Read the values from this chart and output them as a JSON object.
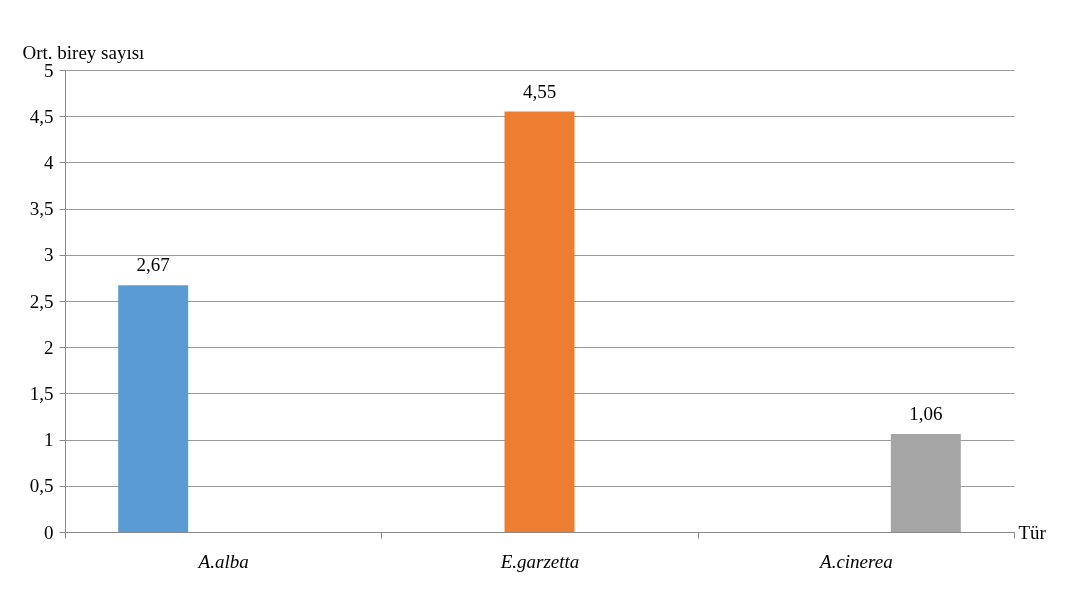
{
  "chart_data": {
    "type": "bar",
    "xlabel": "Tür",
    "ylabel": "Ort. birey sayısı",
    "categories": [
      "A.alba",
      "E.garzetta",
      "A.cinerea"
    ],
    "series": [
      {
        "color": "#5b9bd5",
        "values": [
          2.67,
          null,
          null
        ],
        "value_labels": [
          "2,67",
          null,
          null
        ]
      },
      {
        "color": "#ed7d31",
        "values": [
          null,
          4.55,
          null
        ],
        "value_labels": [
          null,
          "4,55",
          null
        ]
      },
      {
        "color": "#a5a5a5",
        "values": [
          null,
          null,
          1.06
        ],
        "value_labels": [
          null,
          null,
          "1,06"
        ]
      }
    ],
    "ylim": [
      0,
      5
    ],
    "yticks": [
      0,
      {
        "value": 0.5,
        "label": "0,5"
      },
      1,
      {
        "value": 1.5,
        "label": "1,5"
      },
      2,
      {
        "value": 2.5,
        "label": "2,5"
      },
      3,
      {
        "value": 3.5,
        "label": "3,5"
      },
      4,
      {
        "value": 4.5,
        "label": "4,5"
      },
      5
    ],
    "grid": "y",
    "legend": false
  }
}
